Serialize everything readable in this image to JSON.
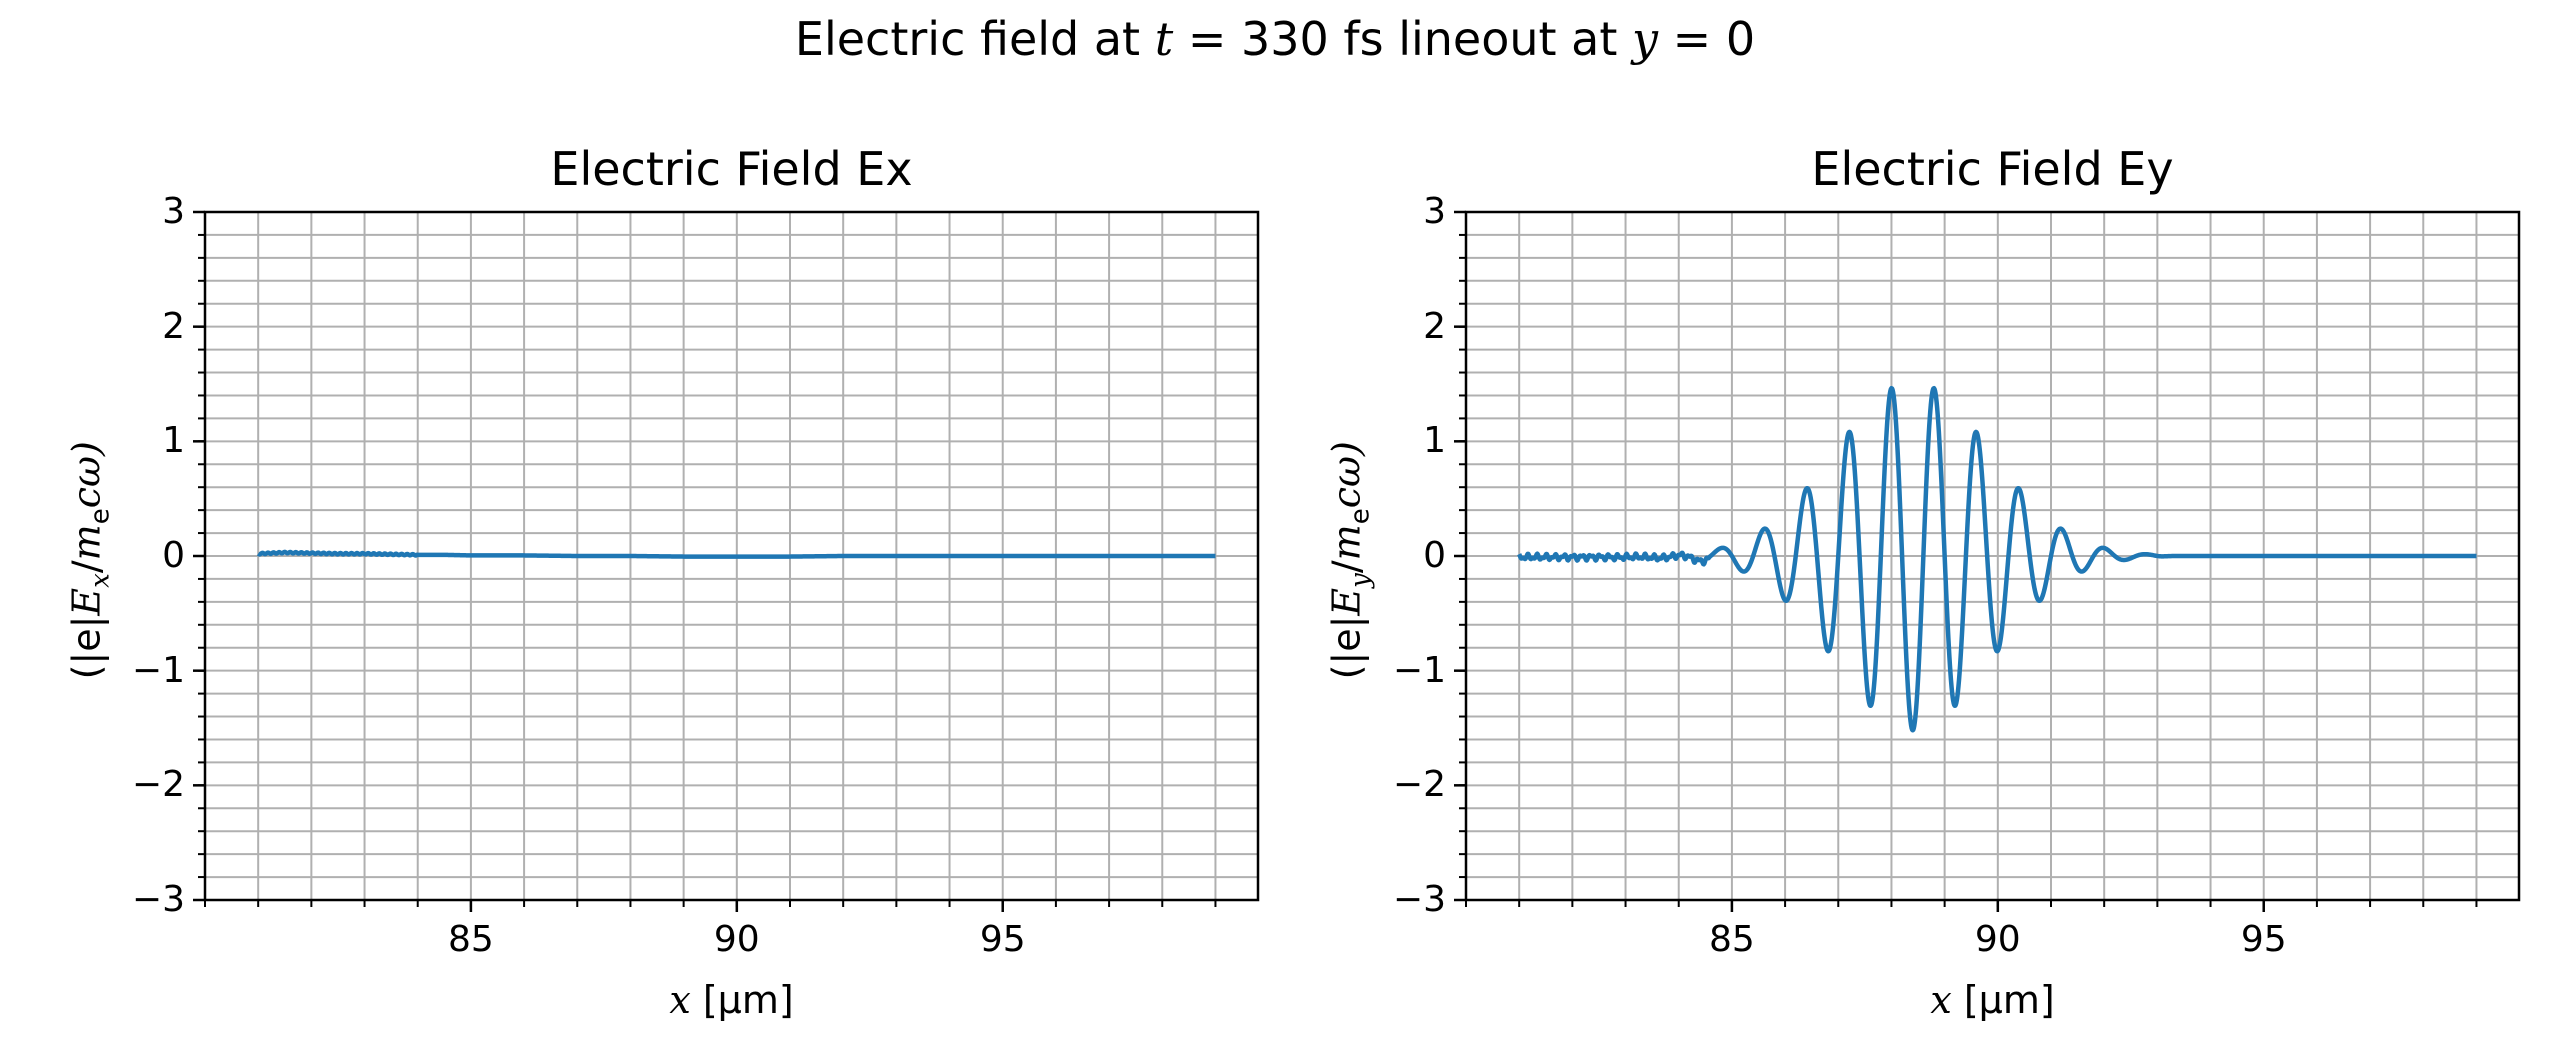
{
  "figure": {
    "suptitle_parts": [
      "Electric field at ",
      "t",
      " = 330 fs lineout at ",
      "y",
      " = 0"
    ]
  },
  "chart_data": [
    {
      "type": "line",
      "title": "Electric Field Ex",
      "xlabel_parts": [
        "x",
        " [μm]"
      ],
      "ylabel_parts": [
        "(|e|",
        "E",
        "x",
        "/",
        "m",
        "e",
        "cω)"
      ],
      "xlim": [
        80.0,
        99.8
      ],
      "ylim": [
        -3,
        3
      ],
      "xticks": [
        85,
        90,
        95
      ],
      "xtick_labels": [
        "85",
        "90",
        "95"
      ],
      "yticks": [
        -3,
        -2,
        -1,
        0,
        1,
        2,
        3
      ],
      "ytick_labels": [
        "−3",
        "−2",
        "−1",
        "0",
        "1",
        "2",
        "3"
      ],
      "grid": true,
      "grid_x_step": 1,
      "grid_y_step": 0.2,
      "line_color": "#1f77b4",
      "series": [
        {
          "x": [
            81.0,
            81.5,
            82.0,
            82.5,
            83.0,
            83.5,
            84.0,
            84.5,
            85.0,
            86.0,
            87.0,
            88.0,
            89.0,
            90.0,
            91.0,
            92.0,
            93.0,
            94.0,
            95.0,
            96.0,
            97.0,
            98.0,
            99.0
          ],
          "y": [
            0.02,
            0.03,
            0.025,
            0.02,
            0.02,
            0.015,
            0.01,
            0.01,
            0.005,
            0.005,
            0.0,
            0.0,
            -0.005,
            -0.005,
            -0.005,
            0.0,
            0.0,
            0.0,
            0.0,
            0.0,
            0.0,
            0.0,
            0.0
          ]
        }
      ]
    },
    {
      "type": "line",
      "title": "Electric Field Ey",
      "xlabel_parts": [
        "x",
        " [μm]"
      ],
      "ylabel_parts": [
        "(|e|",
        "E",
        "y",
        "/",
        "m",
        "e",
        "cω)"
      ],
      "xlim": [
        80.0,
        99.8
      ],
      "ylim": [
        -3,
        3
      ],
      "xticks": [
        85,
        90,
        95
      ],
      "xtick_labels": [
        "85",
        "90",
        "95"
      ],
      "yticks": [
        -3,
        -2,
        -1,
        0,
        1,
        2,
        3
      ],
      "ytick_labels": [
        "−3",
        "−2",
        "−1",
        "0",
        "1",
        "2",
        "3"
      ],
      "grid": true,
      "grid_x_step": 1,
      "grid_y_step": 0.2,
      "line_color": "#1f77b4",
      "series": [
        {
          "x_range": [
            81.0,
            99.0
          ],
          "envelope_center": 88.4,
          "envelope_sigma": 1.45,
          "peak_amplitude": 1.52,
          "wavelength": 0.8,
          "phase_peak_x": 88.0,
          "pulse_end": 92.9,
          "noise_region_end": 84.6,
          "noise_amplitude": 0.03
        }
      ]
    }
  ]
}
